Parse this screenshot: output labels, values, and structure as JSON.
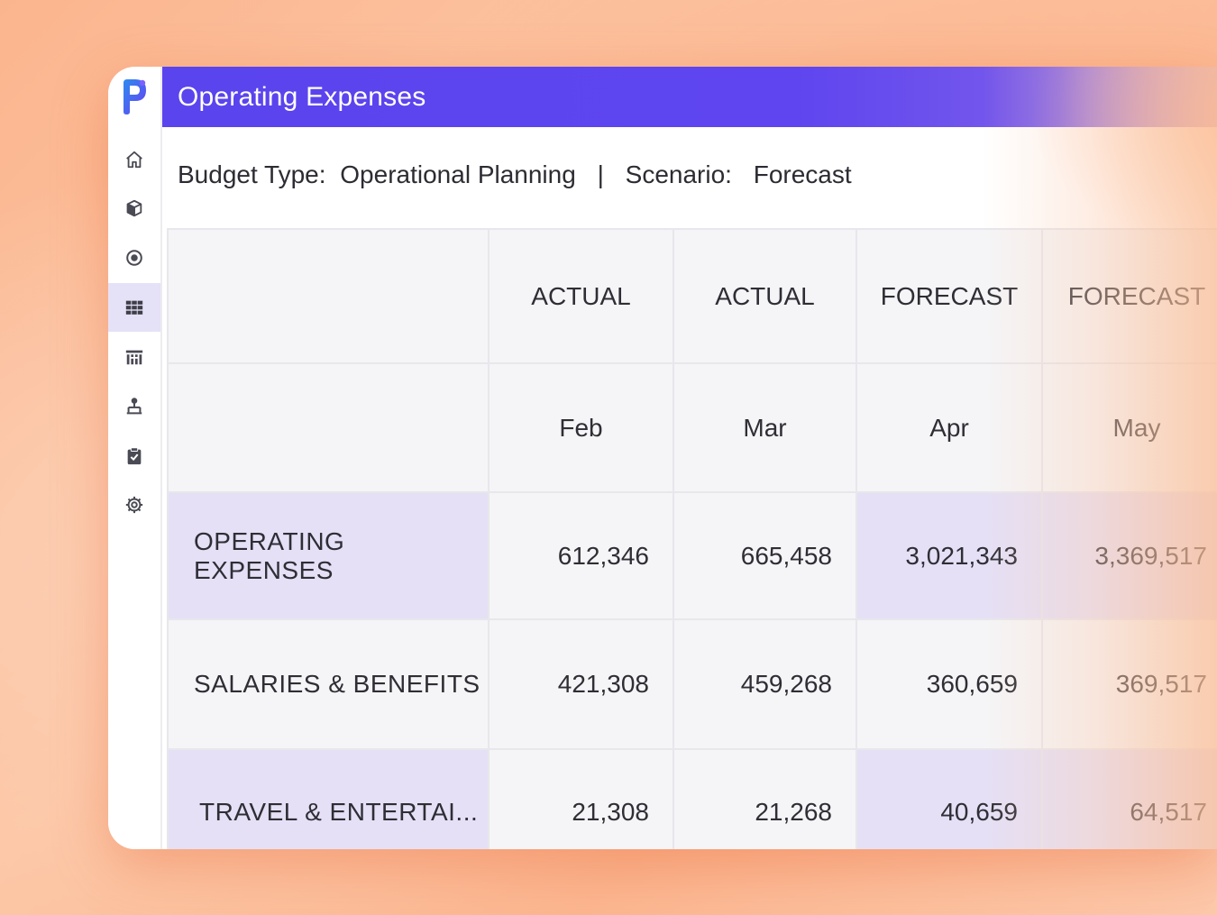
{
  "header": {
    "title": "Operating Expenses"
  },
  "subheader": {
    "budget_label": "Budget Type:",
    "budget_value": "Operational Planning",
    "separator": "|",
    "scenario_label": "Scenario:",
    "scenario_value": "Forecast"
  },
  "sidebar": {
    "items": [
      {
        "icon": "home-icon"
      },
      {
        "icon": "cube-icon"
      },
      {
        "icon": "target-icon"
      },
      {
        "icon": "grid-icon",
        "active": true
      },
      {
        "icon": "building-icon"
      },
      {
        "icon": "hierarchy-icon"
      },
      {
        "icon": "clipboard-check-icon"
      },
      {
        "icon": "gear-icon"
      }
    ]
  },
  "table": {
    "types": [
      "ACTUAL",
      "ACTUAL",
      "FORECAST",
      "FORECAST"
    ],
    "months": [
      "Feb",
      "Mar",
      "Apr",
      "May"
    ],
    "rows": [
      {
        "label": "OPERATING EXPENSES",
        "values": [
          "612,346",
          "665,458",
          "3,021,343",
          "3,369,517"
        ]
      },
      {
        "label": "SALARIES & BENEFITS",
        "values": [
          "421,308",
          "459,268",
          "360,659",
          "369,517"
        ]
      },
      {
        "label": "TRAVEL & ENTERTAI...",
        "values": [
          "21,308",
          "21,268",
          "40,659",
          "64,517"
        ]
      }
    ]
  },
  "colors": {
    "header_start": "#5a44ee",
    "highlight": "#e5e0f6",
    "cell_bg": "#f5f5f7",
    "background": "#fbb58e"
  }
}
